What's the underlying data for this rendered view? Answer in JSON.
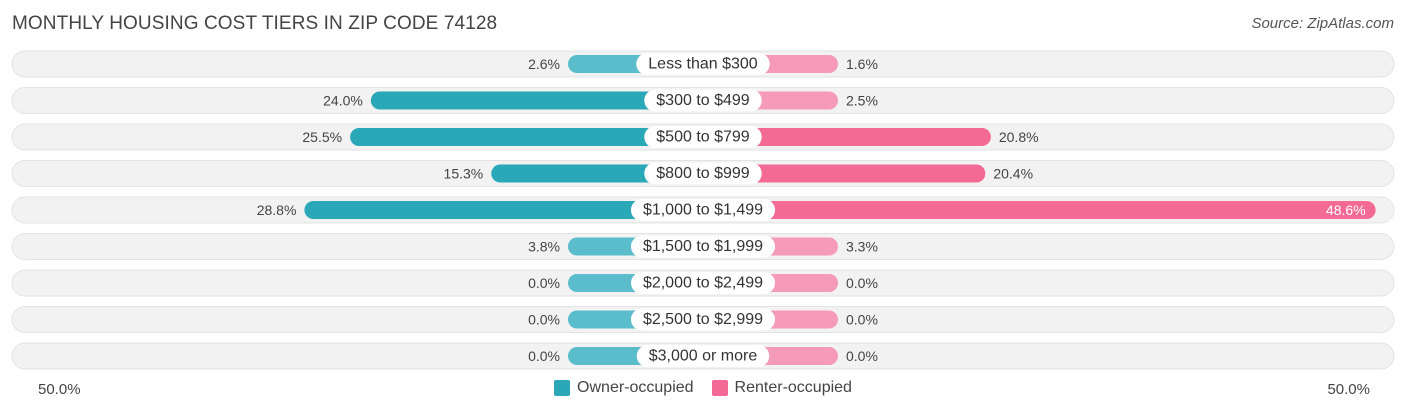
{
  "title": "MONTHLY HOUSING COST TIERS IN ZIP CODE 74128",
  "source": "Source: ZipAtlas.com",
  "axis": {
    "left_label": "50.0%",
    "right_label": "50.0%"
  },
  "colors": {
    "owner": "#5bbccb",
    "owner_strong": "#2ba8b8",
    "renter": "#f59ab8",
    "renter_strong": "#f36a94",
    "row_bg": "#f2f2f2",
    "row_border": "#e3e3e3"
  },
  "legend": {
    "owner": "Owner-occupied",
    "renter": "Renter-occupied"
  },
  "chart_data": {
    "type": "bar",
    "orientation": "horizontal-diverging",
    "xlim": [
      -50,
      50
    ],
    "categories": [
      "Less than $300",
      "$300 to $499",
      "$500 to $799",
      "$800 to $999",
      "$1,000 to $1,499",
      "$1,500 to $1,999",
      "$2,000 to $2,499",
      "$2,500 to $2,999",
      "$3,000 or more"
    ],
    "series": [
      {
        "name": "Owner-occupied",
        "values": [
          2.6,
          24.0,
          25.5,
          15.3,
          28.8,
          3.8,
          0.0,
          0.0,
          0.0
        ],
        "labels": [
          "2.6%",
          "24.0%",
          "25.5%",
          "15.3%",
          "28.8%",
          "3.8%",
          "0.0%",
          "0.0%",
          "0.0%"
        ]
      },
      {
        "name": "Renter-occupied",
        "values": [
          1.6,
          2.5,
          20.8,
          20.4,
          48.6,
          3.3,
          0.0,
          0.0,
          0.0
        ],
        "labels": [
          "1.6%",
          "2.5%",
          "20.8%",
          "20.4%",
          "48.6%",
          "3.3%",
          "0.0%",
          "0.0%",
          "0.0%"
        ]
      }
    ]
  }
}
